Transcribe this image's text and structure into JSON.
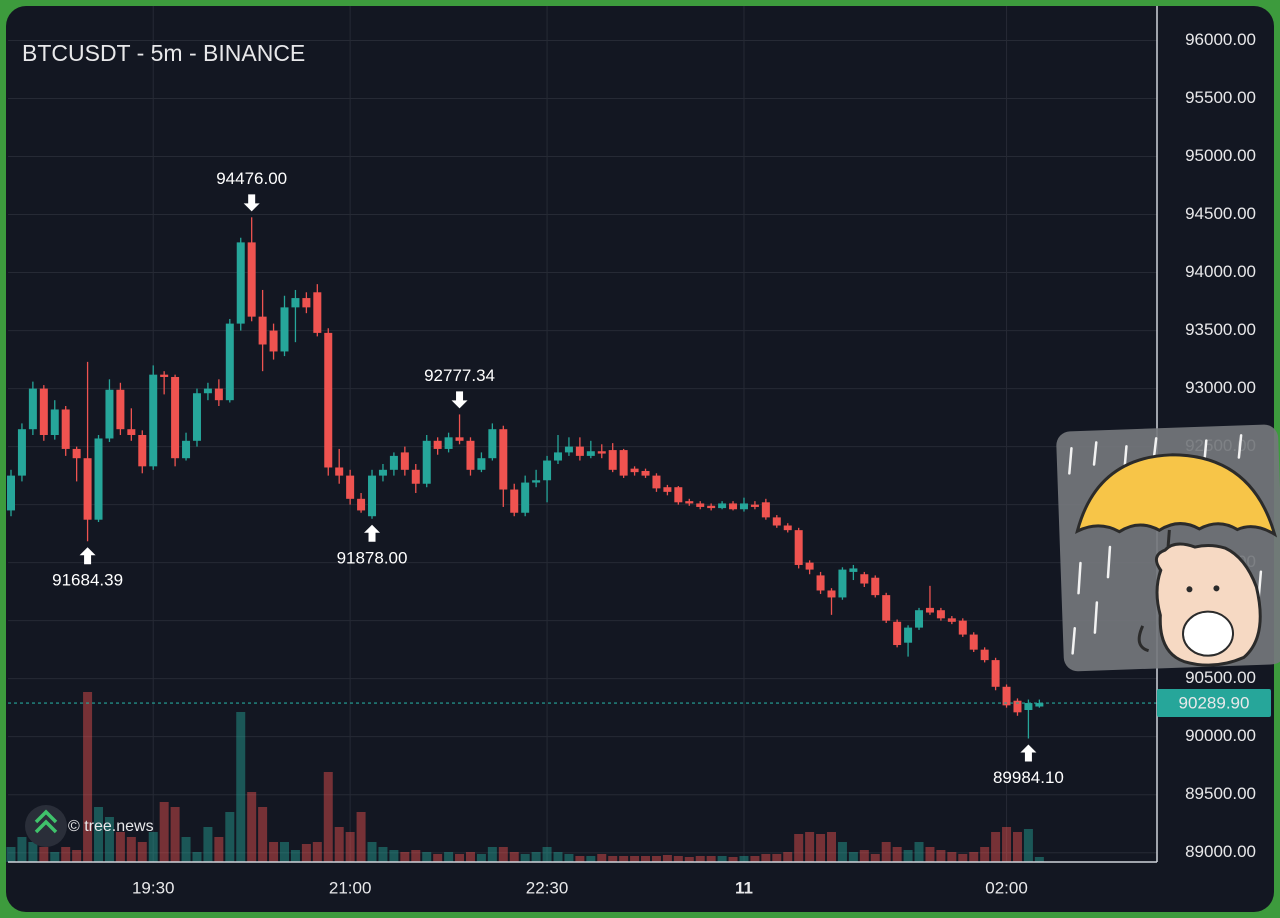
{
  "chart_data": {
    "type": "candlestick",
    "title": "BTCUSDT - 5m - BINANCE",
    "watermark": "© tree.news",
    "x": [
      "18:25",
      "18:30",
      "18:35",
      "18:40",
      "18:45",
      "18:50",
      "18:55",
      "19:00",
      "19:05",
      "19:10",
      "19:15",
      "19:20",
      "19:25",
      "19:30",
      "19:35",
      "19:40",
      "19:45",
      "19:50",
      "19:55",
      "20:00",
      "20:05",
      "20:10",
      "20:15",
      "20:20",
      "20:25",
      "20:30",
      "20:35",
      "20:40",
      "20:45",
      "20:50",
      "20:55",
      "21:00",
      "21:05",
      "21:10",
      "21:15",
      "21:20",
      "21:25",
      "21:30",
      "21:35",
      "21:40",
      "21:45",
      "21:50",
      "21:55",
      "22:00",
      "22:05",
      "22:10",
      "22:15",
      "22:20",
      "22:25",
      "22:30",
      "22:35",
      "22:40",
      "22:45",
      "22:50",
      "22:55",
      "23:00",
      "23:05",
      "23:10",
      "23:15",
      "23:20",
      "23:25",
      "23:30",
      "23:35",
      "23:40",
      "23:45",
      "23:50",
      "23:55",
      "00:00",
      "00:05",
      "00:10",
      "00:15",
      "00:20",
      "00:25",
      "00:30",
      "00:35",
      "00:40",
      "00:45",
      "00:50",
      "00:55",
      "01:00",
      "01:05",
      "01:10",
      "01:15",
      "01:20",
      "01:25",
      "01:30",
      "01:35",
      "01:40",
      "01:45",
      "01:50",
      "01:55",
      "02:00",
      "02:05",
      "02:10",
      "02:15"
    ],
    "open": [
      91950,
      92250,
      92650,
      93000,
      92600,
      92820,
      92480,
      92400,
      91870,
      92570,
      92990,
      92650,
      92600,
      92330,
      93120,
      93100,
      92400,
      92550,
      92960,
      93000,
      92900,
      93560,
      94260,
      93620,
      93500,
      93320,
      93700,
      93780,
      93830,
      93480,
      92320,
      92250,
      92050,
      91900,
      92250,
      92300,
      92450,
      92300,
      92180,
      92550,
      92480,
      92580,
      92550,
      92300,
      92400,
      92650,
      92130,
      91930,
      92190,
      92210,
      92380,
      92450,
      92500,
      92420,
      92460,
      92470,
      92470,
      92310,
      92290,
      92250,
      92150,
      92150,
      92030,
      92010,
      91990,
      91970,
      92010,
      91960,
      92000,
      92020,
      91890,
      91820,
      91780,
      91500,
      91390,
      91260,
      91200,
      91420,
      91400,
      91370,
      91220,
      90990,
      90810,
      90940,
      91110,
      91090,
      91020,
      91000,
      90880,
      90750,
      90660,
      90430,
      90310,
      90230,
      90260
    ],
    "high": [
      92300,
      92700,
      93060,
      93030,
      92900,
      92850,
      92500,
      93230,
      92600,
      93080,
      93050,
      92830,
      92640,
      93200,
      93150,
      93120,
      92620,
      93000,
      93050,
      93080,
      93600,
      94300,
      94476,
      93850,
      93560,
      93800,
      93850,
      93830,
      93900,
      93520,
      92480,
      92300,
      92100,
      92300,
      92350,
      92450,
      92500,
      92350,
      92600,
      92580,
      92620,
      92777.34,
      92580,
      92450,
      92700,
      92680,
      92180,
      92250,
      92300,
      92420,
      92600,
      92580,
      92580,
      92550,
      92520,
      92530,
      92480,
      92330,
      92310,
      92270,
      92170,
      92160,
      92050,
      92030,
      92010,
      92030,
      92030,
      92060,
      92030,
      92050,
      91910,
      91840,
      91800,
      91520,
      91420,
      91280,
      91460,
      91480,
      91420,
      91390,
      91240,
      91010,
      90960,
      91110,
      91300,
      91110,
      91040,
      91020,
      90900,
      90770,
      90680,
      90450,
      90330,
      90320,
      90320
    ],
    "low": [
      91900,
      92200,
      92600,
      92550,
      92560,
      92420,
      92200,
      91684.39,
      91850,
      92540,
      92600,
      92550,
      92270,
      92300,
      92950,
      92330,
      92380,
      92500,
      92900,
      92850,
      92880,
      93500,
      93580,
      93150,
      93250,
      93280,
      93400,
      93650,
      93450,
      92250,
      92180,
      92000,
      91930,
      91878,
      92200,
      92250,
      92250,
      92100,
      92150,
      92430,
      92450,
      92520,
      92250,
      92280,
      92380,
      91980,
      91900,
      91900,
      92150,
      92020,
      92350,
      92420,
      92380,
      92400,
      92400,
      92280,
      92230,
      92250,
      92230,
      92110,
      92080,
      92000,
      91990,
      91960,
      91950,
      91960,
      91950,
      91940,
      91960,
      91870,
      91800,
      91760,
      91450,
      91400,
      91230,
      91050,
      91180,
      91350,
      91290,
      91200,
      90980,
      90770,
      90690,
      90920,
      91050,
      91000,
      90970,
      90860,
      90730,
      90640,
      90400,
      90250,
      90180,
      89984.1,
      90250
    ],
    "close": [
      92250,
      92650,
      93000,
      92600,
      92820,
      92480,
      92400,
      91870,
      92570,
      92990,
      92650,
      92600,
      92330,
      93120,
      93100,
      92400,
      92550,
      92960,
      93000,
      92900,
      93560,
      94260,
      93620,
      93380,
      93320,
      93700,
      93780,
      93700,
      93480,
      92320,
      92250,
      92050,
      91950,
      92250,
      92300,
      92420,
      92300,
      92180,
      92550,
      92480,
      92580,
      92550,
      92300,
      92400,
      92650,
      92130,
      91930,
      92190,
      92210,
      92380,
      92450,
      92500,
      92420,
      92460,
      92440,
      92300,
      92250,
      92280,
      92250,
      92140,
      92110,
      92020,
      92010,
      91980,
      91970,
      92010,
      91960,
      92010,
      91980,
      91890,
      91820,
      91780,
      91480,
      91440,
      91260,
      91200,
      91440,
      91450,
      91320,
      91220,
      91000,
      90790,
      90940,
      91090,
      91070,
      91020,
      90990,
      90880,
      90750,
      90660,
      90430,
      90270,
      90210,
      90290,
      90289.9
    ],
    "volume": [
      15,
      25,
      20,
      15,
      10,
      15,
      12,
      170,
      55,
      45,
      30,
      25,
      20,
      30,
      60,
      55,
      25,
      10,
      35,
      25,
      50,
      150,
      70,
      55,
      20,
      20,
      12,
      18,
      20,
      90,
      35,
      30,
      50,
      20,
      15,
      12,
      10,
      12,
      10,
      8,
      10,
      8,
      10,
      8,
      15,
      15,
      10,
      8,
      10,
      15,
      10,
      8,
      6,
      6,
      8,
      6,
      6,
      6,
      6,
      6,
      7,
      6,
      5,
      6,
      6,
      6,
      5,
      6,
      6,
      8,
      8,
      10,
      28,
      30,
      28,
      30,
      20,
      10,
      12,
      8,
      20,
      15,
      12,
      20,
      15,
      12,
      10,
      8,
      10,
      15,
      30,
      35,
      30,
      33,
      5
    ],
    "up_color": "#26a69a",
    "down_color": "#ef5350",
    "ylim": [
      88920,
      96280
    ],
    "yticks": [
      {
        "value": 96000,
        "label": "96000.00"
      },
      {
        "value": 95500,
        "label": "95500.00"
      },
      {
        "value": 95000,
        "label": "95000.00"
      },
      {
        "value": 94500,
        "label": "94500.00"
      },
      {
        "value": 94000,
        "label": "94000.00"
      },
      {
        "value": 93500,
        "label": "93500.00"
      },
      {
        "value": 93000,
        "label": "93000.00"
      },
      {
        "value": 92500,
        "label": "92500.00"
      },
      {
        "value": 92000,
        "label": "92000.00"
      },
      {
        "value": 91500,
        "label": "91500.00"
      },
      {
        "value": 91000,
        "label": "91000.00"
      },
      {
        "value": 90500,
        "label": "90500.00"
      },
      {
        "value": 90000,
        "label": "90000.00"
      },
      {
        "value": 89500,
        "label": "89500.00"
      },
      {
        "value": 89000,
        "label": "89000.00"
      }
    ],
    "xticks": [
      "19:30",
      "21:00",
      "22:30",
      {
        "value": "00:00",
        "label": "11"
      },
      "02:00"
    ],
    "grid": true,
    "annotations": [
      {
        "x": "19:00",
        "value": 91684.39,
        "label": "91684.39"
      },
      {
        "x": "20:15",
        "value": 94476,
        "label": "94476.00"
      },
      {
        "x": "21:10",
        "value": 91878,
        "label": "91878.00"
      },
      {
        "x": "21:50",
        "value": 92777.34,
        "label": "92777.34"
      },
      {
        "x": "02:10",
        "value": 89984.1,
        "label": "89984.10"
      }
    ],
    "last_price": {
      "value": 90289.9,
      "label": "90289.90"
    }
  }
}
